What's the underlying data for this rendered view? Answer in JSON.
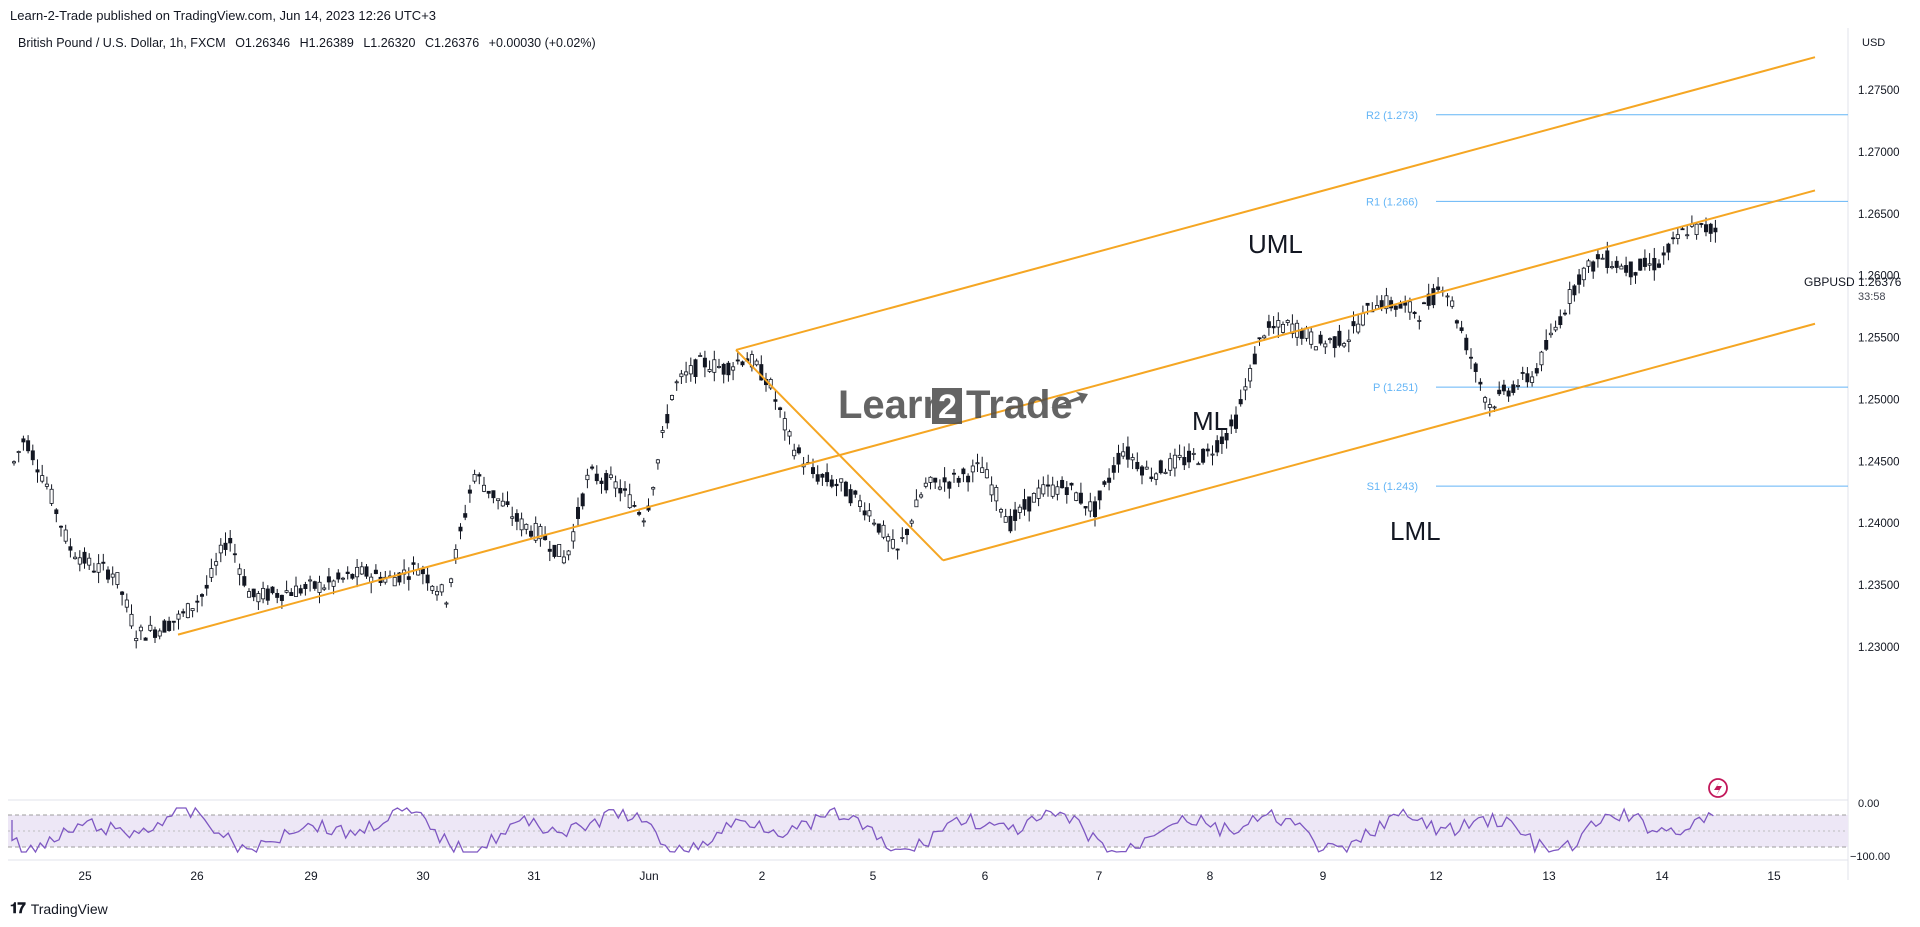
{
  "header": {
    "published": "Learn-2-Trade published on TradingView.com, Jun 14, 2023 12:26 UTC+3",
    "symbol_desc": "British Pound / U.S. Dollar, 1h, FXCM",
    "open": "O1.26346",
    "high": "H1.26389",
    "low": "L1.26320",
    "close": "C1.26376",
    "change": "+0.00030 (+0.02%)"
  },
  "price_axis": {
    "currency": "USD",
    "ticks": [
      "1.27500",
      "1.27000",
      "1.26500",
      "1.26000",
      "1.25500",
      "1.25000",
      "1.24500",
      "1.24000",
      "1.23500",
      "1.23000"
    ],
    "last_symbol": "GBPUSD",
    "last_price": "1.26376",
    "countdown": "33:58"
  },
  "rsi_axis": {
    "ticks": [
      "0.00",
      "−100.00"
    ]
  },
  "time_axis": {
    "ticks": [
      "25",
      "26",
      "29",
      "30",
      "31",
      "Jun",
      "2",
      "5",
      "6",
      "7",
      "8",
      "9",
      "12",
      "13",
      "14",
      "15"
    ]
  },
  "pivots": [
    {
      "label": "R2 (1.273)",
      "value": 1.273
    },
    {
      "label": "R1 (1.266)",
      "value": 1.266
    },
    {
      "label": "P (1.251)",
      "value": 1.251
    },
    {
      "label": "S1 (1.243)",
      "value": 1.243
    }
  ],
  "annotations": {
    "uml": "UML",
    "ml": "ML",
    "lml": "LML"
  },
  "watermark": {
    "left": "Learn",
    "digit": "2",
    "right": "Trade"
  },
  "footer": {
    "brand": "TradingView"
  },
  "colors": {
    "up": "#131722",
    "pitchfork": "#f5a623",
    "pivot": "#64b5f6",
    "rsi": "#7e57c2",
    "rsi_band": "#ede7f6"
  },
  "chart_data": {
    "type": "candlestick",
    "title": "British Pound / U.S. Dollar, 1h, FXCM",
    "ylabel": "USD",
    "ylim": [
      1.2275,
      1.279
    ],
    "x_ticks": [
      "25",
      "26",
      "29",
      "30",
      "31",
      "Jun",
      "2",
      "5",
      "6",
      "7",
      "8",
      "9",
      "12",
      "13",
      "14",
      "15"
    ],
    "close_path": [
      [
        "25",
        1.247
      ],
      [
        "25",
        1.243
      ],
      [
        "25",
        1.238
      ],
      [
        "25",
        1.2365
      ],
      [
        "25",
        1.236
      ],
      [
        "26",
        1.231
      ],
      [
        "26",
        1.2315
      ],
      [
        "26",
        1.2325
      ],
      [
        "26",
        1.2345
      ],
      [
        "26",
        1.239
      ],
      [
        "29",
        1.234
      ],
      [
        "29",
        1.2345
      ],
      [
        "29",
        1.235
      ],
      [
        "30",
        1.236
      ],
      [
        "30",
        1.2355
      ],
      [
        "30",
        1.2365
      ],
      [
        "30",
        1.234
      ],
      [
        "31",
        1.244
      ],
      [
        "31",
        1.242
      ],
      [
        "31",
        1.24
      ],
      [
        "31",
        1.239
      ],
      [
        "31",
        1.237
      ],
      [
        "Jun",
        1.244
      ],
      [
        "Jun",
        1.243
      ],
      [
        "Jun",
        1.2405
      ],
      [
        "Jun",
        1.251
      ],
      [
        "2",
        1.253
      ],
      [
        "2",
        1.2525
      ],
      [
        "2",
        1.2535
      ],
      [
        "2",
        1.2515
      ],
      [
        "2",
        1.2465
      ],
      [
        "5",
        1.244
      ],
      [
        "5",
        1.243
      ],
      [
        "5",
        1.241
      ],
      [
        "5",
        1.2375
      ],
      [
        "6",
        1.243
      ],
      [
        "6",
        1.2435
      ],
      [
        "6",
        1.2445
      ],
      [
        "6",
        1.24
      ],
      [
        "7",
        1.2425
      ],
      [
        "7",
        1.243
      ],
      [
        "7",
        1.241
      ],
      [
        "7",
        1.246
      ],
      [
        "8",
        1.244
      ],
      [
        "8",
        1.245
      ],
      [
        "8",
        1.2455
      ],
      [
        "8",
        1.248
      ],
      [
        "9",
        1.2555
      ],
      [
        "9",
        1.256
      ],
      [
        "9",
        1.2545
      ],
      [
        "9",
        1.255
      ],
      [
        "12",
        1.258
      ],
      [
        "12",
        1.2575
      ],
      [
        "12",
        1.257
      ],
      [
        "12",
        1.2595
      ],
      [
        "12",
        1.2545
      ],
      [
        "13",
        1.2495
      ],
      [
        "13",
        1.251
      ],
      [
        "13",
        1.252
      ],
      [
        "13",
        1.256
      ],
      [
        "13",
        1.26
      ],
      [
        "14",
        1.2615
      ],
      [
        "14",
        1.2605
      ],
      [
        "14",
        1.261
      ],
      [
        "14",
        1.26376
      ]
    ],
    "pitchfork": {
      "pivot_a": {
        "x": "26",
        "y": 1.231
      },
      "pivot_b": {
        "x": "2",
        "y": 1.254
      },
      "pivot_c": {
        "x": "5",
        "y": 1.237
      }
    },
    "pivot_levels": {
      "R2": 1.273,
      "R1": 1.266,
      "P": 1.251,
      "S1": 1.243
    },
    "last": 1.26376,
    "rsi": {
      "ylim": [
        -100,
        0
      ]
    }
  }
}
